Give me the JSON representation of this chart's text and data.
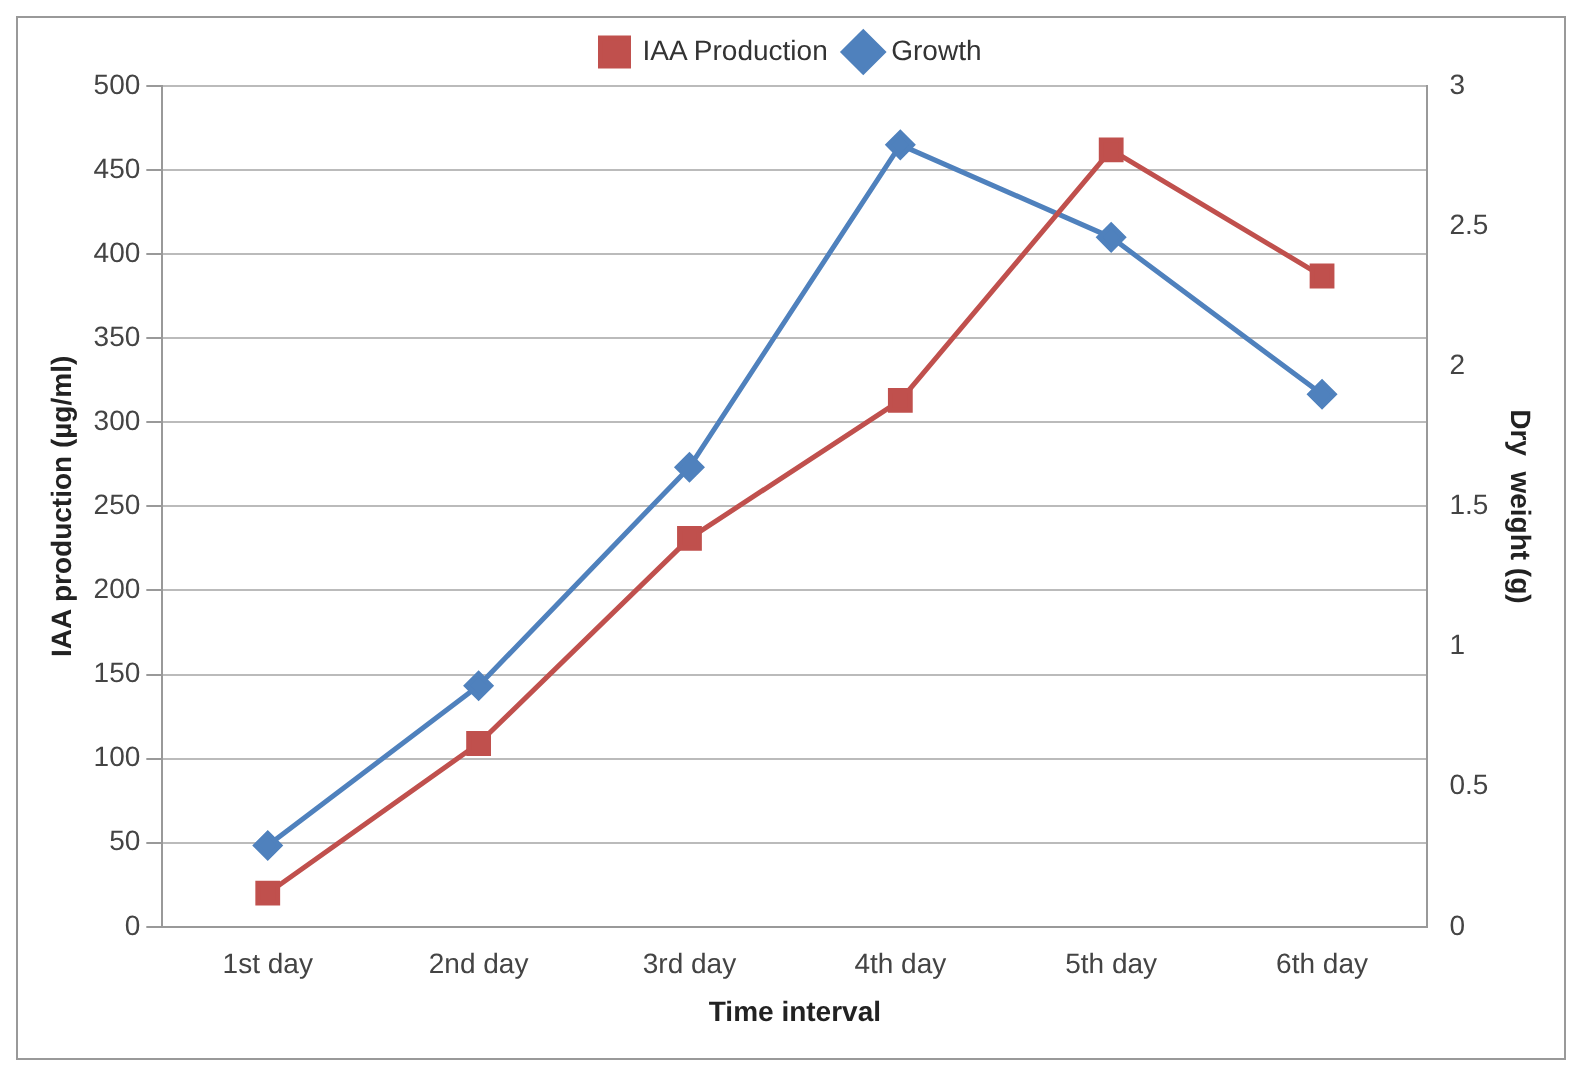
{
  "chart_data": {
    "type": "line",
    "xlabel": "Time interval",
    "ylabel": "IAA production (µg/ml)",
    "y2label": "Dry  weight (g)",
    "categories": [
      "1st day",
      "2nd day",
      "3rd day",
      "4th day",
      "5th day",
      "6th day"
    ],
    "series": [
      {
        "name": "IAA Production",
        "color": "#c0504d",
        "marker": "square",
        "values": [
          20,
          109,
          231,
          313,
          462,
          387
        ]
      },
      {
        "name": "Growth",
        "color": "#4f81bd",
        "marker": "diamond",
        "axis": "y2",
        "values": [
          0.29,
          0.86,
          1.64,
          2.79,
          2.46,
          1.9
        ]
      }
    ],
    "ylim": [
      0,
      500
    ],
    "yticks": [
      0,
      50,
      100,
      150,
      200,
      250,
      300,
      350,
      400,
      450,
      500
    ],
    "y2lim": [
      0,
      3
    ],
    "y2ticks": [
      0,
      0.5,
      1,
      1.5,
      2,
      2.5,
      3
    ],
    "grid": "y",
    "legend": "top"
  }
}
